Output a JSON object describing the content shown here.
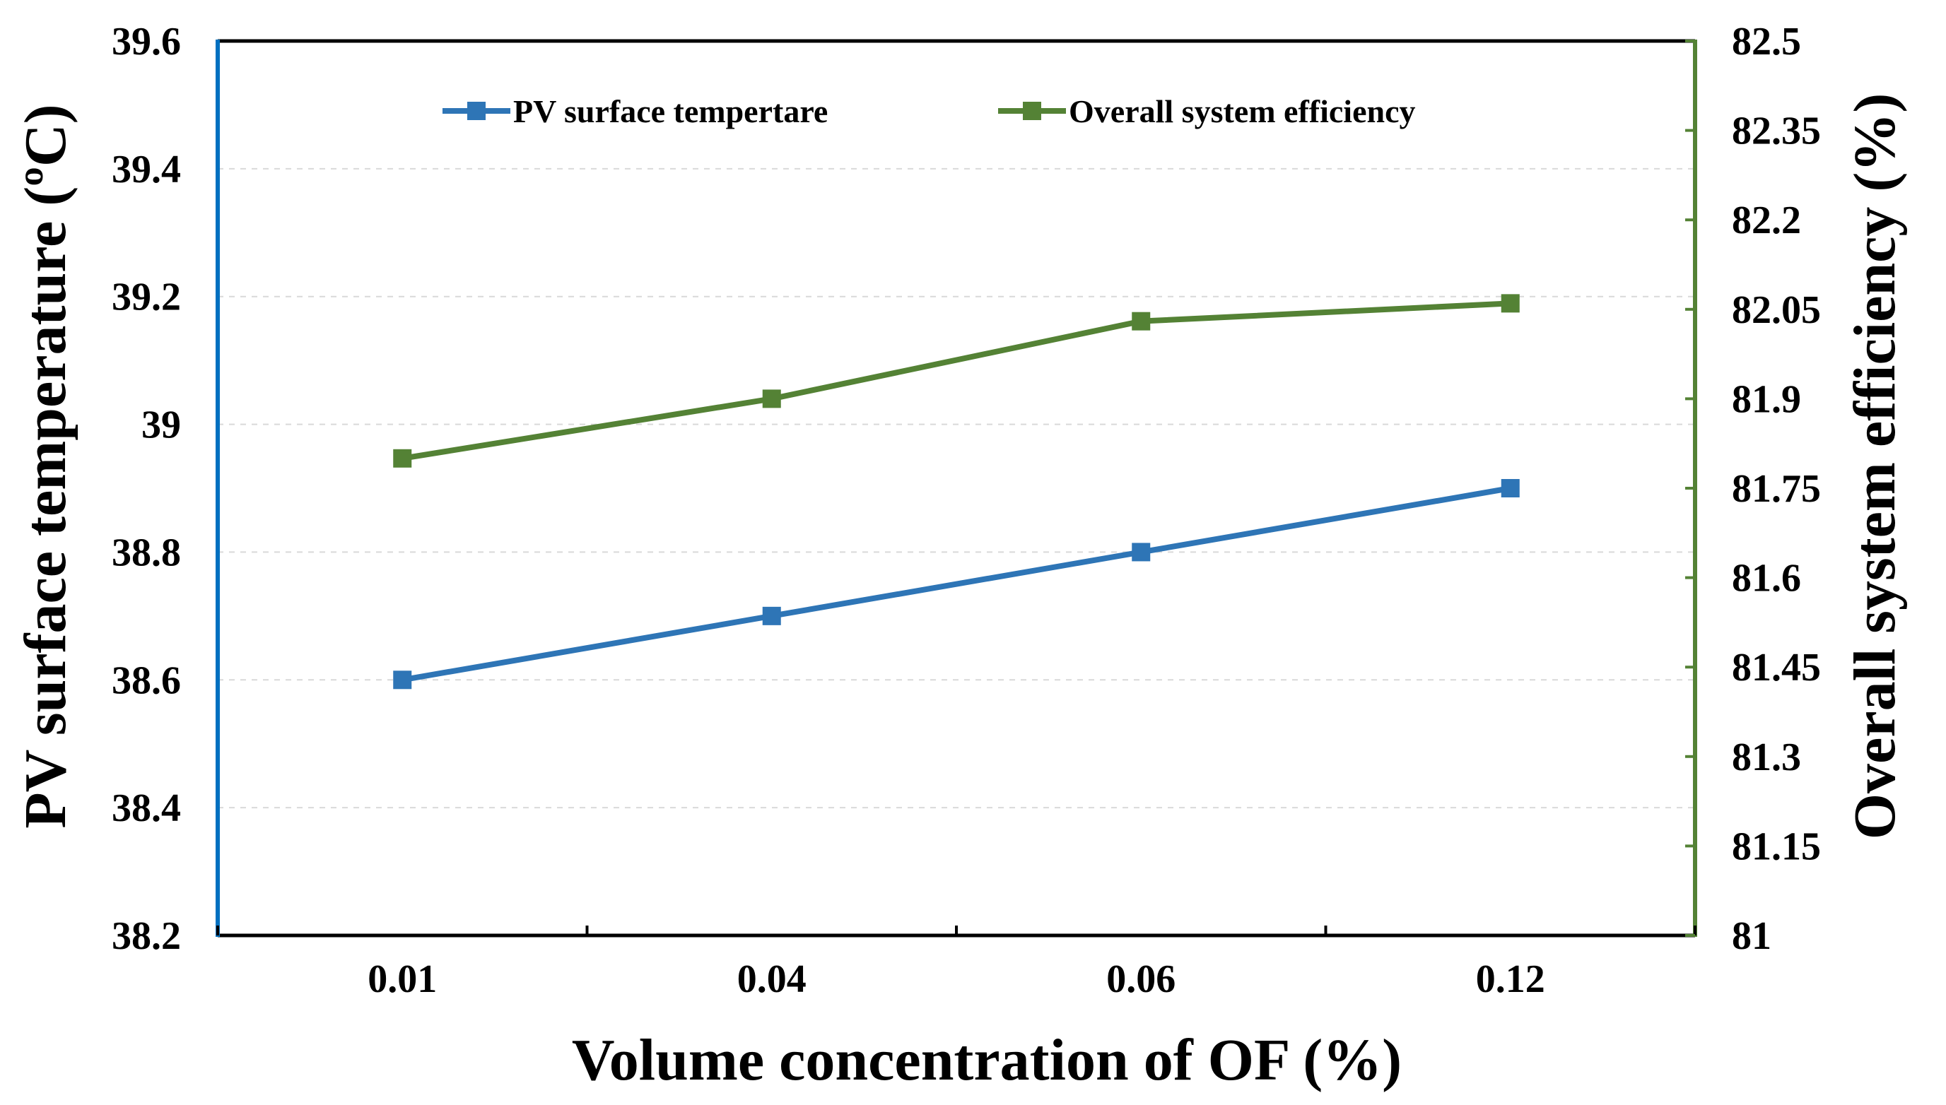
{
  "chart_data": {
    "type": "line",
    "categories": [
      "0.01",
      "0.04",
      "0.06",
      "0.12"
    ],
    "xlabel": "Volume concentration of OF (%)",
    "ylabel_left": "PV surface temperature (ºC)",
    "ylabel_right": "Overall system efficiency (%)",
    "ylim_left": [
      38.2,
      39.6
    ],
    "ylim_right": [
      81,
      82.5
    ],
    "yticks_left": [
      "38.2",
      "38.4",
      "38.6",
      "38.8",
      "39",
      "39.2",
      "39.4",
      "39.6"
    ],
    "yticks_right": [
      "81",
      "81.15",
      "81.3",
      "81.45",
      "81.6",
      "81.75",
      "81.9",
      "82.05",
      "82.2",
      "82.35",
      "82.5"
    ],
    "grid": "horizontal dashed",
    "legend_position": "top",
    "series": [
      {
        "name": "PV surface tempertare",
        "axis": "left",
        "color": "#2e75b6",
        "values": [
          38.6,
          38.7,
          38.8,
          38.9
        ]
      },
      {
        "name": "Overall system efficiency",
        "axis": "right",
        "color": "#548235",
        "values": [
          81.8,
          81.9,
          82.03,
          82.06
        ]
      }
    ],
    "axis_colors": {
      "left": "#0070c0",
      "right": "#548235",
      "bottom": "#000000"
    }
  }
}
